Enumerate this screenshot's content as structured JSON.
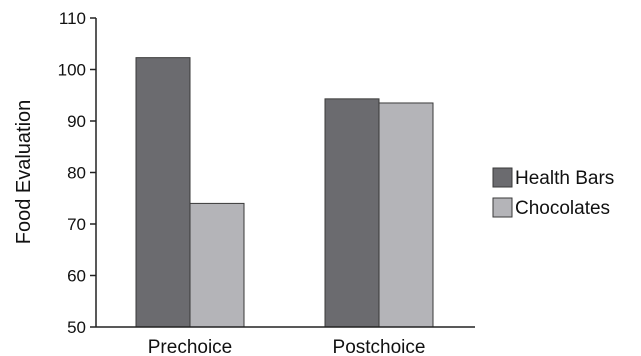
{
  "chart_data": {
    "type": "bar",
    "categories": [
      "Prechoice",
      "Postchoice"
    ],
    "series": [
      {
        "name": "Health Bars",
        "values": [
          102.3,
          94.3
        ],
        "color": "#6b6b6f"
      },
      {
        "name": "Chocolates",
        "values": [
          74.0,
          93.5
        ],
        "color": "#b4b4b8"
      }
    ],
    "ylabel": "Food Evaluation",
    "ylim": [
      50,
      110
    ],
    "yticks": [
      "50",
      "60",
      "70",
      "80",
      "90",
      "100",
      "110"
    ],
    "grid": false,
    "legend_position": "right"
  }
}
